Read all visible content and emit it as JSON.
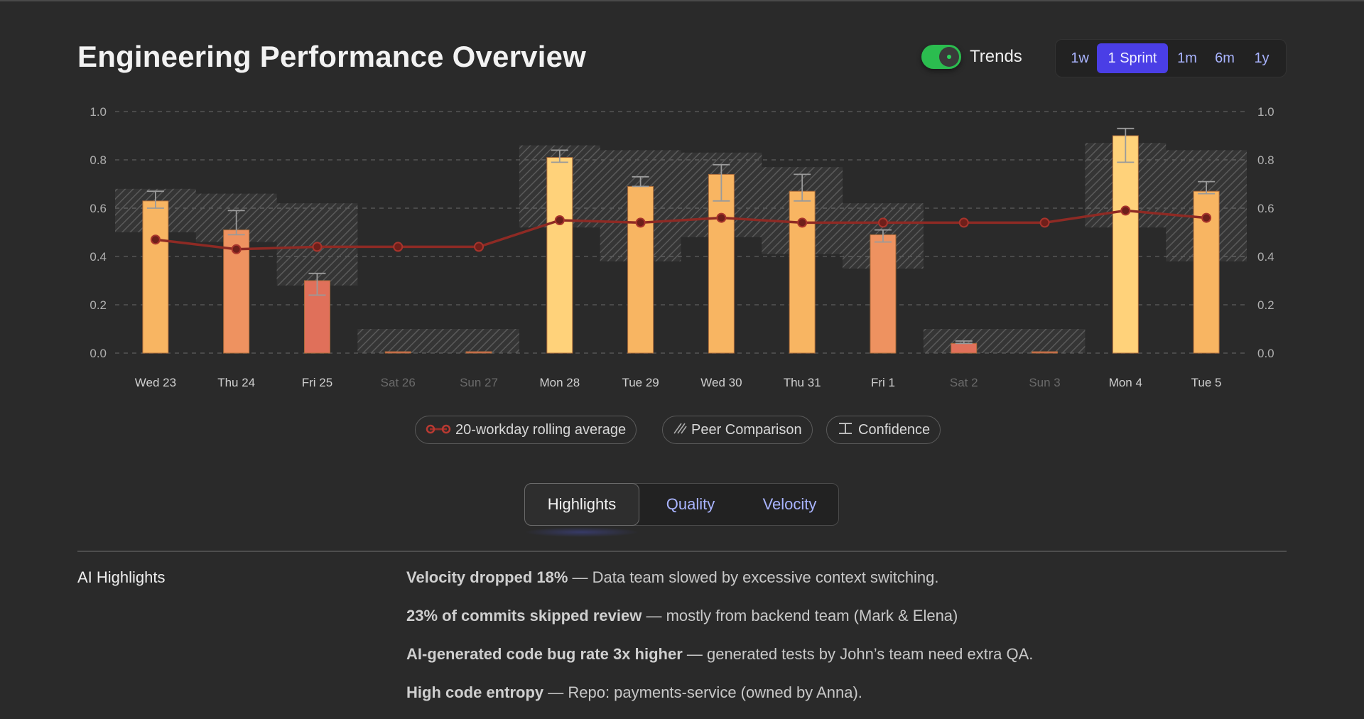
{
  "header": {
    "title": "Engineering Performance Overview"
  },
  "trends": {
    "label": "Trends",
    "enabled": true,
    "toggle_color": "#2bbd4f"
  },
  "range": {
    "options": [
      {
        "label": "1w",
        "active": false
      },
      {
        "label": "1 Sprint",
        "active": true
      },
      {
        "label": "1m",
        "active": false
      },
      {
        "label": "6m",
        "active": false
      },
      {
        "label": "1y",
        "active": false
      }
    ],
    "active_color": "#4a3ee6"
  },
  "chart_data": {
    "type": "bar",
    "title": "",
    "xlabel": "",
    "ylabel": "",
    "ylim": [
      0,
      1.0
    ],
    "yticks": [
      "0.0",
      "0.2",
      "0.4",
      "0.6",
      "0.8",
      "1.0"
    ],
    "categories": [
      "Wed 23",
      "Thu 24",
      "Fri 25",
      "Sat 26",
      "Sun 27",
      "Mon 28",
      "Tue 29",
      "Wed 30",
      "Thu 31",
      "Fri 1",
      "Sat 2",
      "Sun 3",
      "Mon 4",
      "Tue 5"
    ],
    "weekend": [
      false,
      false,
      false,
      true,
      true,
      false,
      false,
      false,
      false,
      false,
      true,
      true,
      false,
      false
    ],
    "series": [
      {
        "name": "",
        "values": [
          0.63,
          0.51,
          0.3,
          0.0,
          0.0,
          0.81,
          0.69,
          0.74,
          0.67,
          0.49,
          0.04,
          0.0,
          0.9,
          0.67
        ]
      },
      {
        "name": "20-workday rolling average",
        "values": [
          0.47,
          0.43,
          0.44,
          0.44,
          0.44,
          0.55,
          0.54,
          0.56,
          0.54,
          0.54,
          0.54,
          0.54,
          0.59,
          0.56
        ]
      }
    ],
    "confidence": [
      [
        0.6,
        0.67
      ],
      [
        0.49,
        0.59
      ],
      [
        0.24,
        0.33
      ],
      null,
      null,
      [
        0.79,
        0.84
      ],
      [
        0.69,
        0.73
      ],
      [
        0.63,
        0.78
      ],
      [
        0.63,
        0.74
      ],
      [
        0.46,
        0.51
      ],
      [
        0.04,
        0.05
      ],
      null,
      [
        0.79,
        0.93
      ],
      [
        0.66,
        0.71
      ]
    ],
    "peer_comparison": [
      [
        0.5,
        0.68
      ],
      [
        0.46,
        0.66
      ],
      [
        0.28,
        0.62
      ],
      [
        0.0,
        0.1
      ],
      [
        0.0,
        0.1
      ],
      [
        0.52,
        0.86
      ],
      [
        0.38,
        0.84
      ],
      [
        0.48,
        0.83
      ],
      [
        0.41,
        0.77
      ],
      [
        0.35,
        0.62
      ],
      [
        0.0,
        0.1
      ],
      [
        0.0,
        0.1
      ],
      [
        0.52,
        0.87
      ],
      [
        0.38,
        0.84
      ]
    ],
    "legend": [
      "20-workday rolling average",
      "Peer Comparison",
      "Confidence"
    ],
    "colors": {
      "bar_high": "#ffd27a",
      "bar_mid": "#f8b562",
      "bar_low": "#ee9260",
      "bar_lowest": "#e0705a",
      "line": "#8e2a24",
      "grid": "#555555"
    }
  },
  "tabs": [
    {
      "label": "Highlights",
      "active": true
    },
    {
      "label": "Quality",
      "active": false
    },
    {
      "label": "Velocity",
      "active": false
    }
  ],
  "highlights": {
    "label": "AI Highlights",
    "items": [
      {
        "bold": "Velocity dropped 18%",
        "text": " — Data team slowed by excessive context switching."
      },
      {
        "bold": "23% of commits skipped review",
        "text": " — mostly from backend team (Mark & Elena)"
      },
      {
        "bold": "AI-generated code bug rate 3x higher",
        "text": " — generated tests by John’s team need extra QA."
      },
      {
        "bold": "High code entropy",
        "text": " — Repo: payments-service (owned by Anna)."
      }
    ]
  }
}
